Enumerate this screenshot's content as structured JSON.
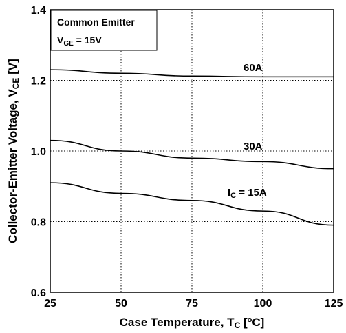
{
  "chart_data": {
    "type": "line",
    "xlabel": {
      "main": "Case Temperature, T",
      "sub": "C",
      "mid": " [",
      "sup": "o",
      "end": "C]"
    },
    "ylabel": {
      "main": "Collector-Emitter Voltage, V",
      "sub": "CE",
      "end": " [V]"
    },
    "xlim": [
      25,
      125
    ],
    "ylim": [
      0.6,
      1.4
    ],
    "x_ticks": [
      "25",
      "50",
      "75",
      "100",
      "125"
    ],
    "y_ticks": [
      "0.6",
      "0.8",
      "1.0",
      "1.2",
      "1.4"
    ],
    "grid": "dotted",
    "legend_box": {
      "line1": "Common Emitter",
      "line2_main": "V",
      "line2_sub": "GE",
      "line2_end": " = 15V"
    },
    "series": [
      {
        "name": "60A",
        "x": [
          25,
          50,
          75,
          100,
          125
        ],
        "y": [
          1.23,
          1.22,
          1.212,
          1.21,
          1.21
        ]
      },
      {
        "name": "30A",
        "x": [
          25,
          50,
          75,
          100,
          125
        ],
        "y": [
          1.03,
          1.0,
          0.98,
          0.97,
          0.95
        ]
      },
      {
        "name_main": "I",
        "name_sub": "C",
        "name_end": " = 15A",
        "x": [
          25,
          50,
          75,
          100,
          125
        ],
        "y": [
          0.91,
          0.88,
          0.86,
          0.83,
          0.79
        ]
      }
    ]
  }
}
